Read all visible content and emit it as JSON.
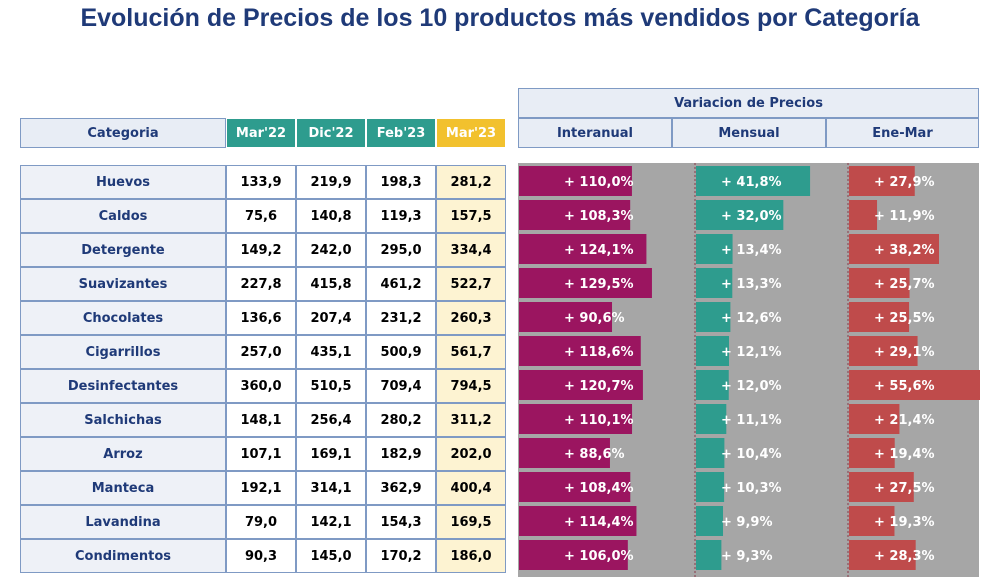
{
  "title": "Evolución de Precios de los 10 productos más vendidos por Categoría",
  "table": {
    "headers": {
      "category": "Categoria",
      "periods": [
        "Mar'22",
        "Dic'22",
        "Feb'23",
        "Mar'23"
      ],
      "variation_group": "Variacion de Precios",
      "variations": [
        "Interanual",
        "Mensual",
        "Ene-Mar"
      ]
    },
    "rows": [
      {
        "category": "Huevos",
        "values": [
          "133,9",
          "219,9",
          "198,3",
          "281,2"
        ],
        "interanual": "+ 110,0%",
        "mensual": "+ 41,8%",
        "ene_mar": "+ 27,9%"
      },
      {
        "category": "Caldos",
        "values": [
          "75,6",
          "140,8",
          "119,3",
          "157,5"
        ],
        "interanual": "+ 108,3%",
        "mensual": "+ 32,0%",
        "ene_mar": "+ 11,9%"
      },
      {
        "category": "Detergente",
        "values": [
          "149,2",
          "242,0",
          "295,0",
          "334,4"
        ],
        "interanual": "+ 124,1%",
        "mensual": "+ 13,4%",
        "ene_mar": "+ 38,2%"
      },
      {
        "category": "Suavizantes",
        "values": [
          "227,8",
          "415,8",
          "461,2",
          "522,7"
        ],
        "interanual": "+ 129,5%",
        "mensual": "+ 13,3%",
        "ene_mar": "+ 25,7%"
      },
      {
        "category": "Chocolates",
        "values": [
          "136,6",
          "207,4",
          "231,2",
          "260,3"
        ],
        "interanual": "+ 90,6%",
        "mensual": "+ 12,6%",
        "ene_mar": "+ 25,5%"
      },
      {
        "category": "Cigarrillos",
        "values": [
          "257,0",
          "435,1",
          "500,9",
          "561,7"
        ],
        "interanual": "+ 118,6%",
        "mensual": "+ 12,1%",
        "ene_mar": "+ 29,1%"
      },
      {
        "category": "Desinfectantes",
        "values": [
          "360,0",
          "510,5",
          "709,4",
          "794,5"
        ],
        "interanual": "+ 120,7%",
        "mensual": "+ 12,0%",
        "ene_mar": "+ 55,6%"
      },
      {
        "category": "Salchichas",
        "values": [
          "148,1",
          "256,4",
          "280,2",
          "311,2"
        ],
        "interanual": "+ 110,1%",
        "mensual": "+ 11,1%",
        "ene_mar": "+ 21,4%"
      },
      {
        "category": "Arroz",
        "values": [
          "107,1",
          "169,1",
          "182,9",
          "202,0"
        ],
        "interanual": "+ 88,6%",
        "mensual": "+ 10,4%",
        "ene_mar": "+ 19,4%"
      },
      {
        "category": "Manteca",
        "values": [
          "192,1",
          "314,1",
          "362,9",
          "400,4"
        ],
        "interanual": "+ 108,4%",
        "mensual": "+ 10,3%",
        "ene_mar": "+ 27,5%"
      },
      {
        "category": "Lavandina",
        "values": [
          "79,0",
          "142,1",
          "154,3",
          "169,5"
        ],
        "interanual": "+ 114,4%",
        "mensual": "+ 9,9%",
        "ene_mar": "+ 19,3%"
      },
      {
        "category": "Condimentos",
        "values": [
          "90,3",
          "145,0",
          "170,2",
          "186,0"
        ],
        "interanual": "+ 106,0%",
        "mensual": "+ 9,3%",
        "ene_mar": "+ 28,3%"
      }
    ]
  },
  "chart_data": {
    "type": "bar",
    "title": "Variacion de Precios",
    "categories": [
      "Huevos",
      "Caldos",
      "Detergente",
      "Suavizantes",
      "Chocolates",
      "Cigarrillos",
      "Desinfectantes",
      "Salchichas",
      "Arroz",
      "Manteca",
      "Lavandina",
      "Condimentos"
    ],
    "series": [
      {
        "name": "Interanual",
        "unit": "%",
        "values": [
          110.0,
          108.3,
          124.1,
          129.5,
          90.6,
          118.6,
          120.7,
          110.1,
          88.6,
          108.4,
          114.4,
          106.0
        ],
        "max": 150
      },
      {
        "name": "Mensual",
        "unit": "%",
        "values": [
          41.8,
          32.0,
          13.4,
          13.3,
          12.6,
          12.1,
          12.0,
          11.1,
          10.4,
          10.3,
          9.9,
          9.3
        ],
        "max": 48
      },
      {
        "name": "Ene-Mar",
        "unit": "%",
        "values": [
          27.9,
          11.9,
          38.2,
          25.7,
          25.5,
          29.1,
          55.6,
          21.4,
          19.4,
          27.5,
          19.3,
          28.3
        ],
        "max": 55.6
      }
    ],
    "colors": {
      "interanual": "#9b1560",
      "mensual": "#2e9c8e",
      "ene_mar": "#bf4b4b",
      "background": "#a6a6a6"
    }
  }
}
